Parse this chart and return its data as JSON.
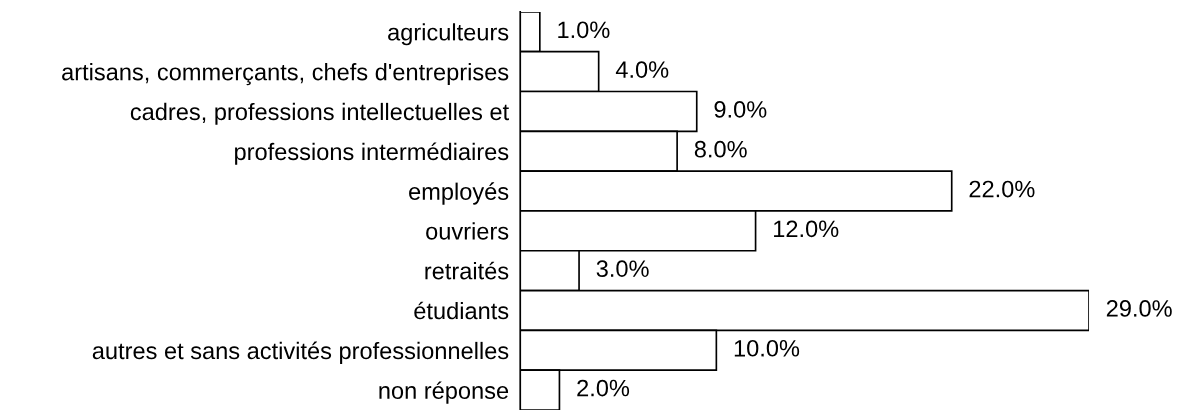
{
  "chart_data": {
    "type": "bar",
    "orientation": "horizontal",
    "categories": [
      "agriculteurs",
      "artisans, commerçants, chefs d'entreprises",
      "cadres, professions intellectuelles et",
      "professions intermédiaires",
      "employés",
      "ouvriers",
      "retraités",
      "étudiants",
      "autres et sans activités professionnelles",
      "non réponse"
    ],
    "values": [
      1,
      4,
      9,
      8,
      22,
      12,
      3,
      29,
      10,
      2
    ],
    "value_labels": [
      "1.0%",
      "4.0%",
      "9.0%",
      "8.0%",
      "22.0%",
      "12.0%",
      "3.0%",
      "29.0%",
      "10.0%",
      "2.0%"
    ],
    "color": "#ffffff",
    "xlim": [
      0,
      29
    ],
    "tick_labels": "y",
    "grid": false,
    "legend": false
  }
}
